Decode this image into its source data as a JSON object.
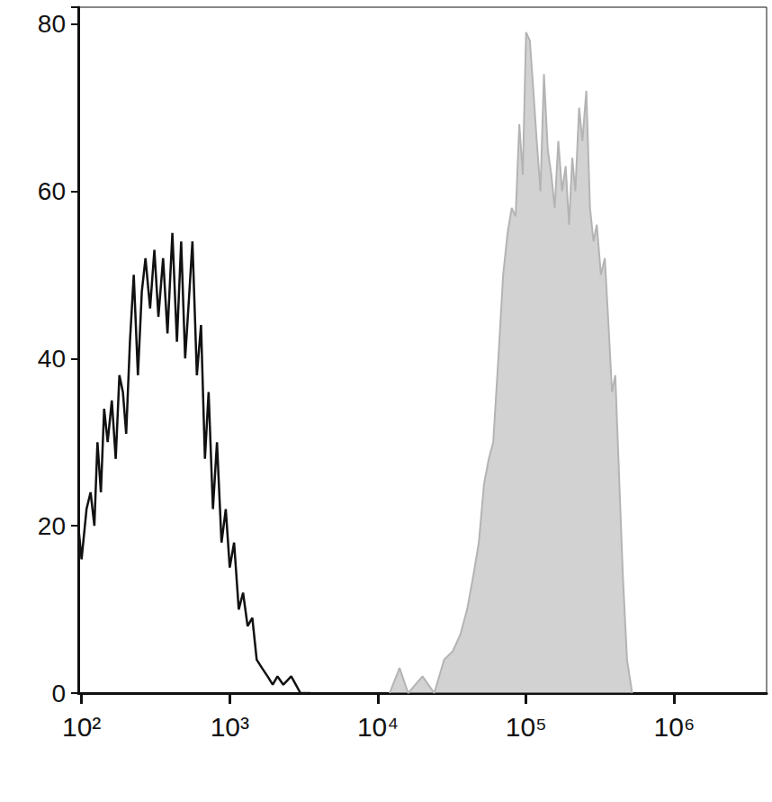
{
  "chart_data": {
    "type": "line",
    "log": "x",
    "grid": false,
    "xlim": [
      95,
      4200000
    ],
    "xticks": [
      {
        "value": 100,
        "label": "10²"
      },
      {
        "value": 1000,
        "label": "10³"
      },
      {
        "value": 10000,
        "label": "10⁴"
      },
      {
        "value": 100000,
        "label": "10⁵"
      },
      {
        "value": 1000000,
        "label": "10⁶"
      }
    ],
    "ylim": [
      0,
      82
    ],
    "yticks": [
      0,
      20,
      40,
      60,
      80
    ],
    "series": [
      {
        "type": "line",
        "color": "#111111",
        "x": [
          95,
          100,
          108,
          115,
          122,
          128,
          135,
          142,
          150,
          160,
          170,
          180,
          190,
          200,
          212,
          225,
          240,
          255,
          270,
          290,
          310,
          330,
          355,
          380,
          410,
          440,
          470,
          500,
          530,
          560,
          600,
          640,
          680,
          720,
          770,
          820,
          880,
          940,
          1000,
          1070,
          1150,
          1230,
          1320,
          1420,
          1520,
          1650,
          1800,
          1950,
          2100,
          2300,
          2600,
          3000,
          3500
        ],
        "values": [
          20,
          16,
          22,
          24,
          20,
          30,
          24,
          34,
          30,
          35,
          28,
          38,
          36,
          31,
          42,
          50,
          38,
          48,
          52,
          46,
          53,
          45,
          52,
          43,
          55,
          42,
          54,
          40,
          47,
          54,
          38,
          44,
          28,
          36,
          22,
          30,
          18,
          22,
          15,
          18,
          10,
          12,
          8,
          9,
          4,
          3,
          2,
          1,
          2,
          1,
          2,
          0,
          0
        ]
      },
      {
        "type": "area",
        "color": "#b4b4b4",
        "x": [
          12000,
          14000,
          16000,
          20000,
          24000,
          28000,
          32000,
          36000,
          40000,
          44000,
          48000,
          52000,
          56000,
          60000,
          65000,
          70000,
          75000,
          80000,
          85000,
          90000,
          95000,
          100000,
          106000,
          112000,
          118000,
          125000,
          132000,
          140000,
          148000,
          156000,
          165000,
          175000,
          185000,
          195000,
          205000,
          215000,
          228000,
          240000,
          255000,
          270000,
          285000,
          300000,
          320000,
          340000,
          360000,
          380000,
          400000,
          420000,
          450000,
          480000,
          520000
        ],
        "values": [
          0,
          3,
          0,
          2,
          0,
          4,
          5,
          7,
          10,
          14,
          18,
          25,
          28,
          30,
          40,
          50,
          55,
          58,
          57,
          68,
          62,
          79,
          78,
          72,
          66,
          60,
          74,
          65,
          62,
          58,
          66,
          60,
          63,
          56,
          64,
          60,
          70,
          66,
          72,
          58,
          54,
          56,
          50,
          52,
          44,
          36,
          38,
          28,
          14,
          4,
          0
        ]
      }
    ]
  }
}
